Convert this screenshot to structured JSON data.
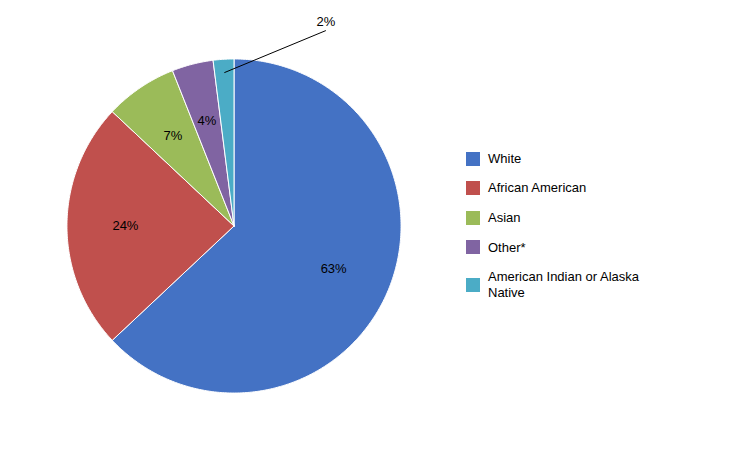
{
  "chart_data": {
    "type": "pie",
    "categories": [
      "White",
      "African American",
      "Asian",
      "Other*",
      "American Indian or Alaska\nNative"
    ],
    "values": [
      63,
      24,
      7,
      4,
      2
    ],
    "value_labels": [
      "63%",
      "24%",
      "7%",
      "4%",
      "2%"
    ],
    "colors": [
      "#4472C4",
      "#C0504D",
      "#9BBB59",
      "#8064A2",
      "#4BACC6"
    ],
    "data_labels": true,
    "legend": "right"
  }
}
